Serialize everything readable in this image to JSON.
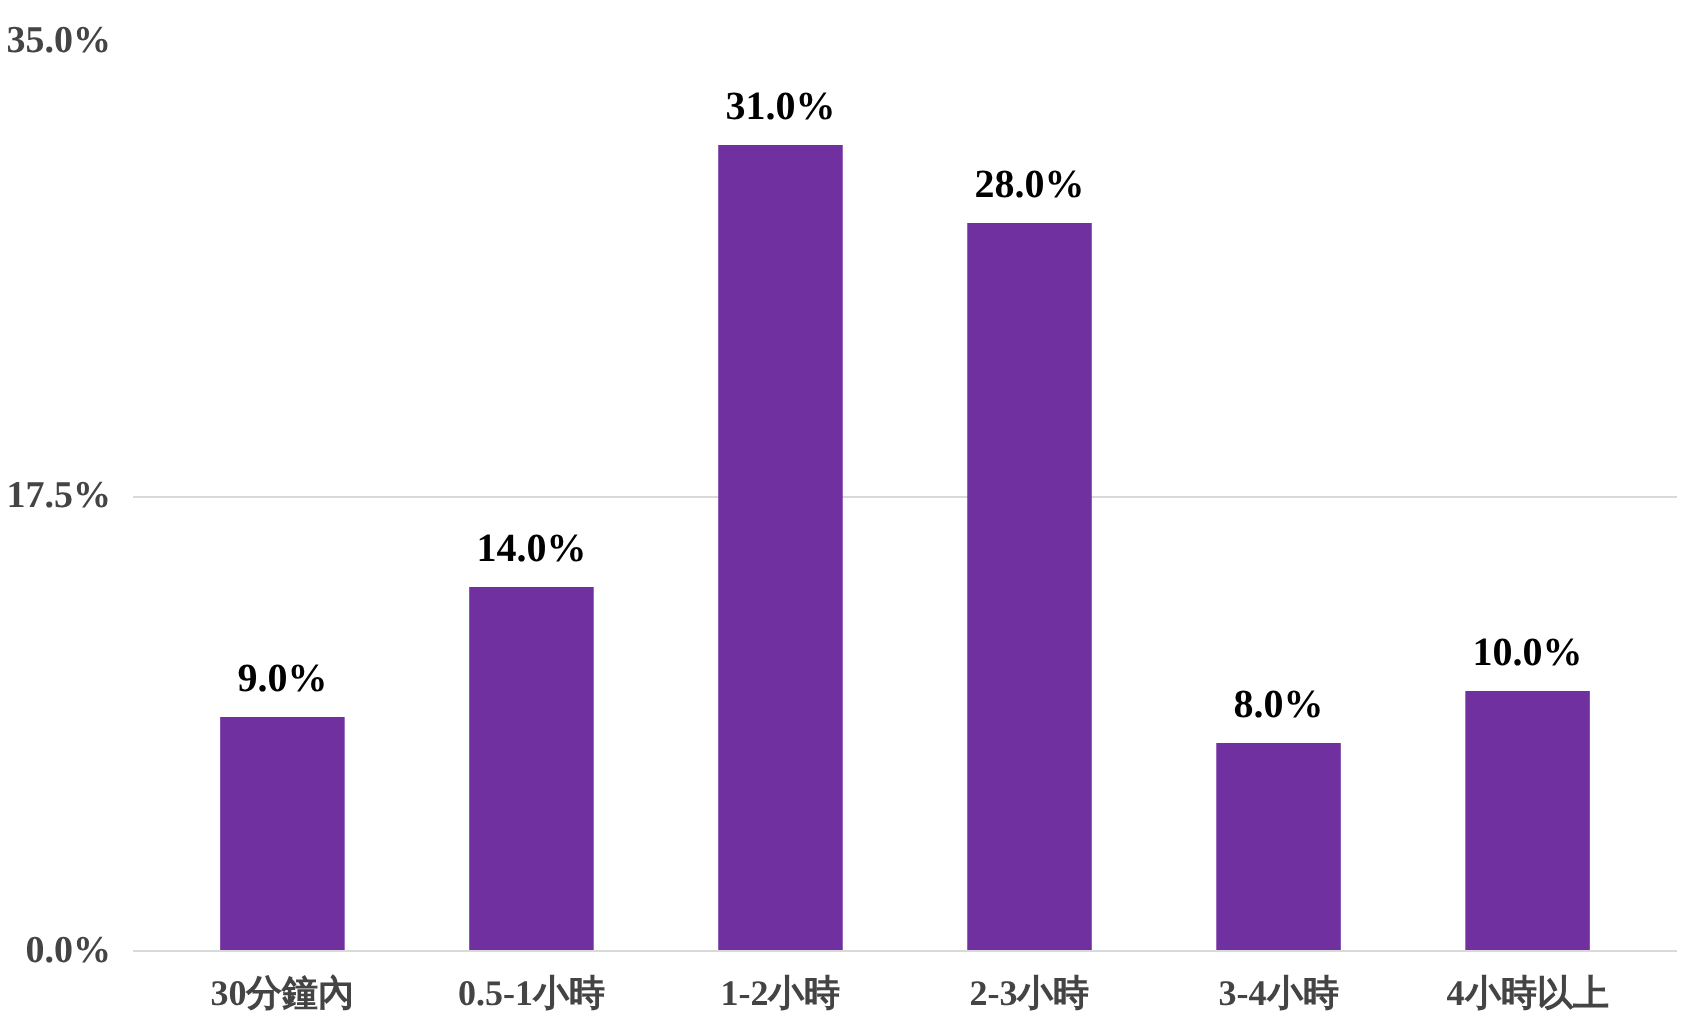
{
  "chart_data": {
    "type": "bar",
    "categories": [
      "30分鐘內",
      "0.5-1小時",
      "1-2小時",
      "2-3小時",
      "3-4小時",
      "4小時以上"
    ],
    "values": [
      9,
      14,
      31,
      28,
      8,
      10
    ],
    "value_labels": [
      "9.0%",
      "14.0%",
      "31.0%",
      "28.0%",
      "8.0%",
      "10.0%"
    ],
    "color": "#7030a0",
    "ylim": [
      0,
      35
    ],
    "yticks": [
      {
        "value": 0,
        "label": "0.0%"
      },
      {
        "value": 17.5,
        "label": "17.5%"
      },
      {
        "value": 35,
        "label": "35.0%"
      }
    ],
    "grid": "y"
  }
}
